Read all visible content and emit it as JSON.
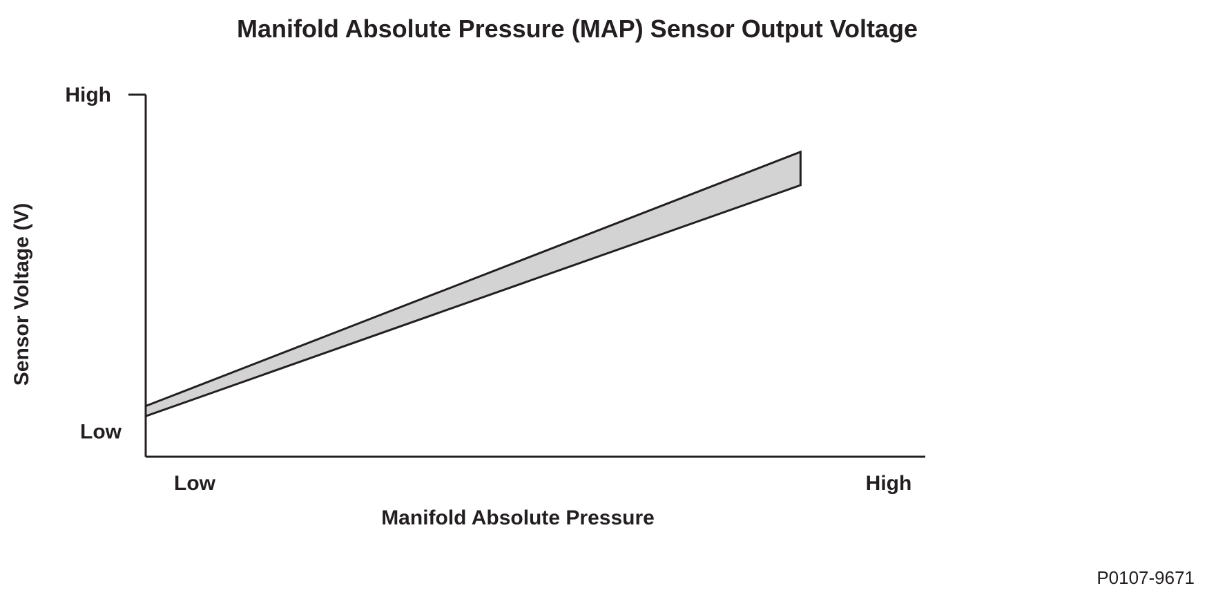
{
  "chart_data": {
    "type": "area",
    "title": "Manifold Absolute Pressure (MAP) Sensor Output Voltage",
    "xlabel": "Manifold Absolute Pressure",
    "ylabel": "Sensor Voltage (V)",
    "x_ticks": [
      "Low",
      "High"
    ],
    "y_ticks": [
      "Low",
      "High"
    ],
    "x_scale": "qualitative (Low to High)",
    "y_scale": "qualitative (Low to High)",
    "xlim": [
      0,
      1
    ],
    "ylim": [
      0,
      1
    ],
    "band": {
      "x": [
        0,
        0.84
      ],
      "upper": [
        0.14,
        0.842
      ],
      "lower": [
        0.112,
        0.75
      ]
    },
    "band_fill": "#d3d3d3",
    "line_color": "#231f20",
    "grid": false,
    "legend": "none",
    "figure_id": "P0107-9671"
  }
}
